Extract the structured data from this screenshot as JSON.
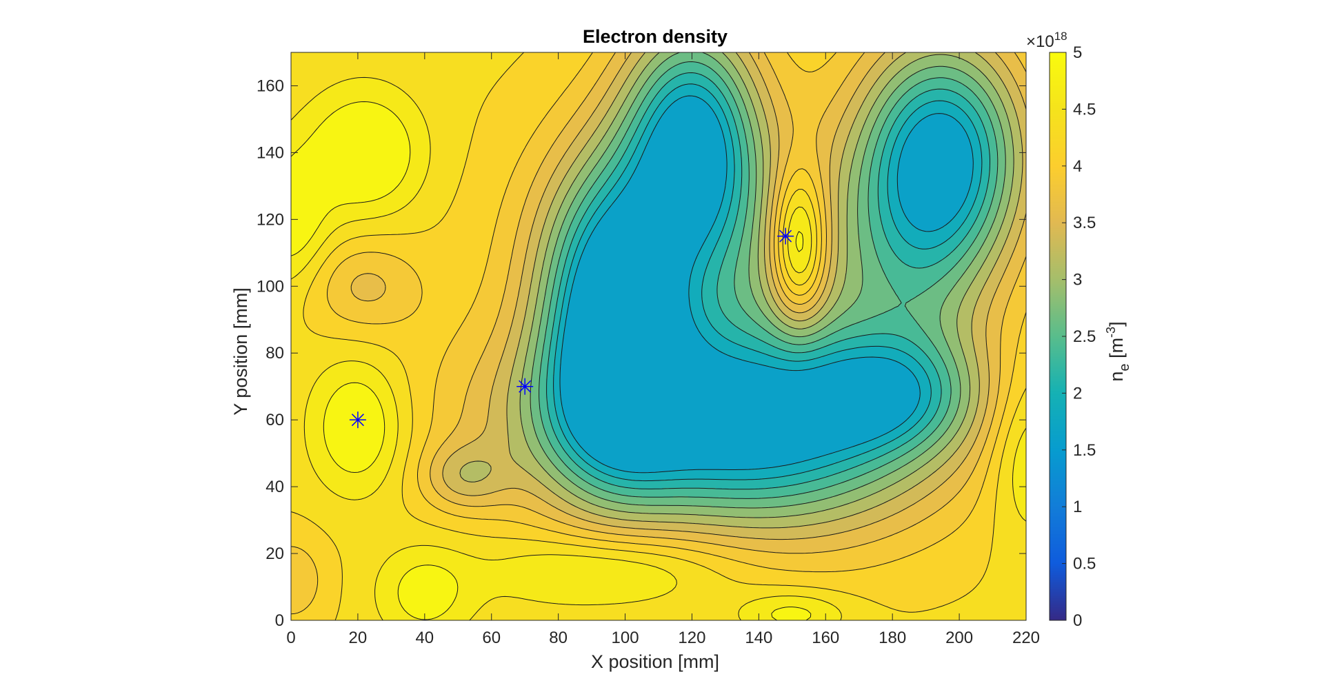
{
  "chart_data": {
    "type": "contourf",
    "title": "Electron density",
    "xlabel": "X position [mm]",
    "ylabel": "Y position [mm]",
    "xlim": [
      0,
      220
    ],
    "ylim": [
      0,
      170
    ],
    "xticks": [
      0,
      20,
      40,
      60,
      80,
      100,
      120,
      140,
      160,
      180,
      200,
      220
    ],
    "yticks": [
      0,
      20,
      40,
      60,
      80,
      100,
      120,
      140,
      160
    ],
    "grid": false,
    "colorbar": {
      "label_main": "n",
      "label_sub": "e",
      "label_unit_open": " [m",
      "label_unit_exp": "-3",
      "label_unit_close": "]",
      "multiplier_base": "×10",
      "multiplier_exp": "18",
      "range": [
        0,
        5
      ],
      "ticks": [
        0,
        0.5,
        1,
        1.5,
        2,
        2.5,
        3,
        3.5,
        4,
        4.5,
        5
      ],
      "tick_labels": [
        "0",
        "0.5",
        "1",
        "1.5",
        "2",
        "2.5",
        "3",
        "3.5",
        "4",
        "4.5",
        "5"
      ],
      "colormap": "parula"
    },
    "contour_levels": [
      1.75,
      2.0,
      2.25,
      2.5,
      2.75,
      3.0,
      3.25,
      3.5,
      3.75,
      4.0,
      4.25,
      4.5,
      4.75
    ],
    "markers": [
      {
        "symbol": "asterisk",
        "color": "#0000ff",
        "x": 20,
        "y": 60
      },
      {
        "symbol": "asterisk",
        "color": "#0000ff",
        "x": 70,
        "y": 70
      },
      {
        "symbol": "asterisk",
        "color": "#0000ff",
        "x": 148,
        "y": 115
      }
    ],
    "field_model": {
      "base": 4.3,
      "features": [
        {
          "x": 96,
          "y": 90,
          "sx": 14,
          "sy": 30,
          "a": -2.6
        },
        {
          "x": 116,
          "y": 60,
          "sx": 40,
          "sy": 20,
          "a": -1.8
        },
        {
          "x": 150,
          "y": 55,
          "sx": 34,
          "sy": 22,
          "a": -1.5
        },
        {
          "x": 120,
          "y": 145,
          "sx": 14,
          "sy": 24,
          "a": -2.5
        },
        {
          "x": 195,
          "y": 140,
          "sx": 17,
          "sy": 24,
          "a": -2.6
        },
        {
          "x": 180,
          "y": 68,
          "sx": 18,
          "sy": 12,
          "a": -1.2
        },
        {
          "x": 120,
          "y": 110,
          "sx": 32,
          "sy": 28,
          "a": -1.2
        },
        {
          "x": 185,
          "y": 105,
          "sx": 18,
          "sy": 28,
          "a": -1.0
        },
        {
          "x": 152,
          "y": 112,
          "sx": 6,
          "sy": 16,
          "a": 1.6
        },
        {
          "x": 22,
          "y": 140,
          "sx": 12,
          "sy": 13,
          "a": 0.9
        },
        {
          "x": 20,
          "y": 58,
          "sx": 10,
          "sy": 14,
          "a": 0.85
        },
        {
          "x": 95,
          "y": 15,
          "sx": 25,
          "sy": 8,
          "a": 0.7
        },
        {
          "x": 40,
          "y": 8,
          "sx": 10,
          "sy": 10,
          "a": 0.6
        },
        {
          "x": 0,
          "y": 120,
          "sx": 8,
          "sy": 14,
          "a": 0.7
        },
        {
          "x": 220,
          "y": 50,
          "sx": 8,
          "sy": 18,
          "a": 0.6
        },
        {
          "x": 150,
          "y": 2,
          "sx": 12,
          "sy": 5,
          "a": 0.6
        },
        {
          "x": 52,
          "y": 43,
          "sx": 9,
          "sy": 7,
          "a": -0.7
        },
        {
          "x": 22,
          "y": 100,
          "sx": 12,
          "sy": 10,
          "a": -0.6
        },
        {
          "x": 0,
          "y": 12,
          "sx": 8,
          "sy": 10,
          "a": -0.5
        }
      ]
    }
  }
}
